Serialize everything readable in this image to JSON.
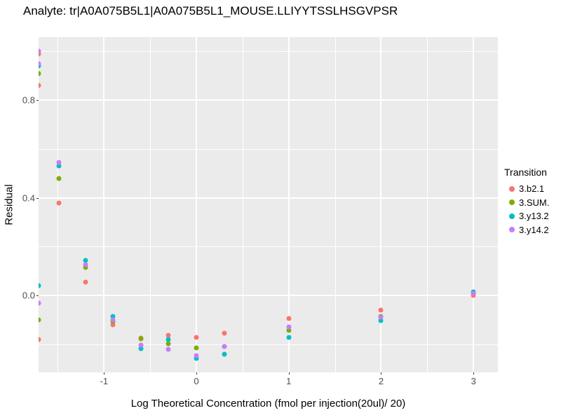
{
  "plot": {
    "title": "Analyte: tr|A0A075B5L1|A0A075B5L1_MOUSE.LLIYYTSSLHSGVPSR"
  },
  "chart_data": {
    "type": "scatter",
    "title": "Analyte: tr|A0A075B5L1|A0A075B5L1_MOUSE.LLIYYTSSLHSGVPSR",
    "xlabel": "Log Theoretical Concentration (fmol per injection(20ul)/ 20)",
    "ylabel": "Residual",
    "xlim": [
      -1.708,
      3.264
    ],
    "ylim": [
      -0.315,
      1.058
    ],
    "x_major_ticks": {
      "values": [
        -1,
        0,
        1,
        2,
        3
      ],
      "labels": [
        "-1",
        "0",
        "1",
        "2",
        "3"
      ]
    },
    "x_minor_ticks": [
      -1.5,
      -0.5,
      0.5,
      1.5,
      2.5
    ],
    "y_major_ticks": {
      "values": [
        0.0,
        0.4,
        0.8
      ],
      "labels": [
        "0.0",
        "0.4",
        "0.8"
      ]
    },
    "y_minor_ticks": [
      -0.2,
      0.2,
      0.6,
      1.0
    ],
    "grid": "white major and minor gridlines on gray panel",
    "panel_bg": "#EBEBEB",
    "gridline_color": "#FFFFFF",
    "tick_label_color": "#4D4D4D",
    "legend_position": "right",
    "legend_title": "Transition",
    "series": [
      {
        "name": "3.b2.1",
        "color": "#F8766D",
        "points": [
          [
            -1.71,
            0.99
          ],
          [
            -1.71,
            0.86
          ],
          [
            -1.71,
            -0.18
          ],
          [
            -1.49,
            0.38
          ],
          [
            -1.2,
            0.055
          ],
          [
            -0.9,
            -0.12
          ],
          [
            -0.6,
            -0.175
          ],
          [
            -0.3,
            -0.163
          ],
          [
            0.0,
            -0.172
          ],
          [
            0.3,
            -0.155
          ],
          [
            1.0,
            -0.095
          ],
          [
            2.0,
            -0.06
          ],
          [
            3.0,
            0.0
          ]
        ]
      },
      {
        "name": "3.SUM.",
        "color": "#7CAE00",
        "points": [
          [
            -1.71,
            0.91
          ],
          [
            -1.71,
            -0.1
          ],
          [
            -1.49,
            0.48
          ],
          [
            -1.2,
            0.115
          ],
          [
            -0.9,
            -0.105
          ],
          [
            -0.6,
            -0.178
          ],
          [
            -0.3,
            -0.198
          ],
          [
            0.0,
            -0.215
          ],
          [
            0.3,
            -0.209
          ],
          [
            1.0,
            -0.143
          ],
          [
            2.0,
            -0.085
          ],
          [
            3.0,
            0.009
          ]
        ]
      },
      {
        "name": "3.y13.2",
        "color": "#00BFC4",
        "points": [
          [
            -1.71,
            0.94
          ],
          [
            -1.71,
            0.04
          ],
          [
            -1.49,
            0.53
          ],
          [
            -1.2,
            0.143
          ],
          [
            -0.9,
            -0.086
          ],
          [
            -0.6,
            -0.218
          ],
          [
            -0.3,
            -0.18
          ],
          [
            0.0,
            -0.258
          ],
          [
            0.3,
            -0.241
          ],
          [
            1.0,
            -0.172
          ],
          [
            2.0,
            -0.103
          ],
          [
            3.0,
            0.014
          ]
        ]
      },
      {
        "name": "3.y14.2",
        "color": "#C77CFF",
        "points": [
          [
            -1.71,
            1.0
          ],
          [
            -1.71,
            0.95
          ],
          [
            -1.71,
            -0.03
          ],
          [
            -1.49,
            0.545
          ],
          [
            -1.2,
            0.125
          ],
          [
            -0.9,
            -0.1
          ],
          [
            -0.6,
            -0.203
          ],
          [
            -0.3,
            -0.221
          ],
          [
            0.0,
            -0.246
          ],
          [
            0.3,
            -0.209
          ],
          [
            1.0,
            -0.129
          ],
          [
            2.0,
            -0.089
          ],
          [
            3.0,
            0.009
          ]
        ]
      }
    ]
  }
}
